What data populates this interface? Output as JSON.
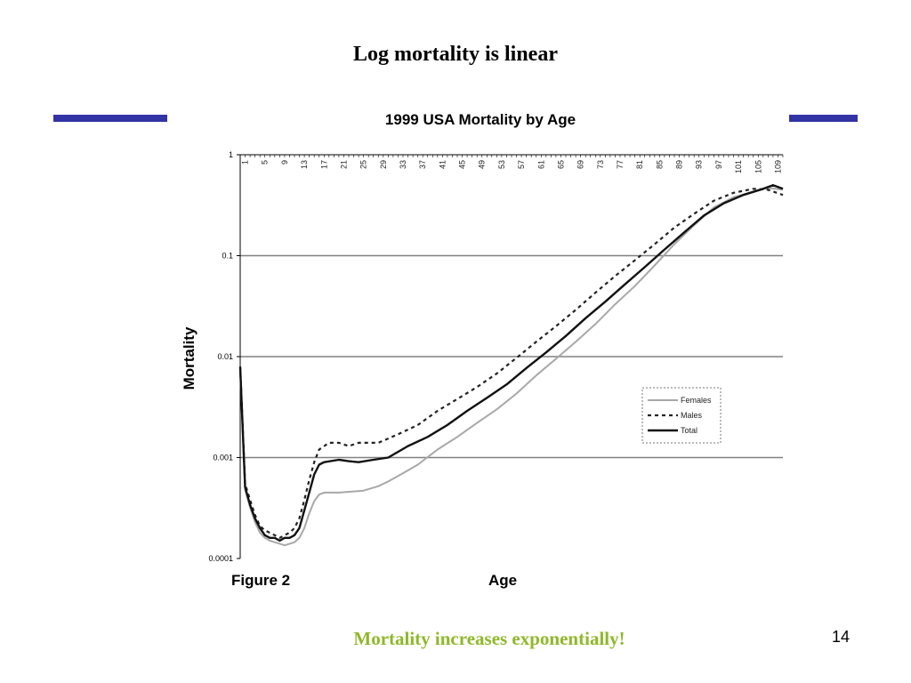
{
  "slide": {
    "title": "Log mortality is linear",
    "caption": "Mortality increases exponentially!",
    "page_number": "14",
    "figure_label": "Figure 2"
  },
  "colors": {
    "accent_bar": "#3333a6",
    "caption": "#8fb82a",
    "females": "#a8a8a8",
    "males": "#222222",
    "total": "#111111",
    "gridline": "#808080"
  },
  "chart_data": {
    "type": "line",
    "title": "1999 USA Mortality by Age",
    "xlabel": "Age",
    "ylabel": "Mortality",
    "y_scale": "log",
    "ylim": [
      0.0001,
      1
    ],
    "xlim": [
      0,
      110
    ],
    "y_ticks": [
      "0.0001",
      "0.001",
      "0.01",
      "0.1",
      "1"
    ],
    "x_ticks": [
      "1",
      "5",
      "9",
      "13",
      "17",
      "21",
      "25",
      "29",
      "33",
      "37",
      "41",
      "45",
      "49",
      "53",
      "57",
      "61",
      "65",
      "69",
      "73",
      "77",
      "81",
      "85",
      "89",
      "93",
      "97",
      "101",
      "105",
      "109"
    ],
    "legend_position": "right",
    "grid": "horizontal",
    "series": [
      {
        "name": "Females",
        "style": "solid-light",
        "points": [
          [
            0,
            0.0075
          ],
          [
            1,
            0.00048
          ],
          [
            2,
            0.00032
          ],
          [
            3,
            0.00023
          ],
          [
            4,
            0.00018
          ],
          [
            5,
            0.00016
          ],
          [
            6,
            0.00015
          ],
          [
            7,
            0.000145
          ],
          [
            8,
            0.00014
          ],
          [
            9,
            0.000135
          ],
          [
            10,
            0.00014
          ],
          [
            11,
            0.000145
          ],
          [
            12,
            0.00016
          ],
          [
            13,
            0.0002
          ],
          [
            14,
            0.00028
          ],
          [
            15,
            0.00037
          ],
          [
            16,
            0.00043
          ],
          [
            17,
            0.00045
          ],
          [
            20,
            0.00045
          ],
          [
            25,
            0.00047
          ],
          [
            28,
            0.00052
          ],
          [
            30,
            0.00058
          ],
          [
            33,
            0.0007
          ],
          [
            36,
            0.00085
          ],
          [
            40,
            0.0012
          ],
          [
            44,
            0.0016
          ],
          [
            48,
            0.0022
          ],
          [
            52,
            0.003
          ],
          [
            56,
            0.0043
          ],
          [
            60,
            0.0065
          ],
          [
            64,
            0.0095
          ],
          [
            68,
            0.014
          ],
          [
            72,
            0.021
          ],
          [
            76,
            0.033
          ],
          [
            80,
            0.05
          ],
          [
            84,
            0.08
          ],
          [
            88,
            0.13
          ],
          [
            92,
            0.2
          ],
          [
            96,
            0.3
          ],
          [
            100,
            0.38
          ],
          [
            104,
            0.43
          ],
          [
            107,
            0.47
          ],
          [
            110,
            0.45
          ]
        ]
      },
      {
        "name": "Males",
        "style": "dashed",
        "points": [
          [
            0,
            0.008
          ],
          [
            1,
            0.00055
          ],
          [
            2,
            0.00038
          ],
          [
            3,
            0.00027
          ],
          [
            4,
            0.00021
          ],
          [
            5,
            0.00019
          ],
          [
            6,
            0.00018
          ],
          [
            7,
            0.00017
          ],
          [
            8,
            0.00016
          ],
          [
            9,
            0.00017
          ],
          [
            10,
            0.00018
          ],
          [
            11,
            0.0002
          ],
          [
            12,
            0.00025
          ],
          [
            13,
            0.00038
          ],
          [
            14,
            0.0006
          ],
          [
            15,
            0.0009
          ],
          [
            16,
            0.0012
          ],
          [
            17,
            0.0013
          ],
          [
            18,
            0.0014
          ],
          [
            20,
            0.0014
          ],
          [
            22,
            0.0013
          ],
          [
            24,
            0.0014
          ],
          [
            28,
            0.0014
          ],
          [
            32,
            0.0017
          ],
          [
            36,
            0.0021
          ],
          [
            40,
            0.0029
          ],
          [
            44,
            0.0038
          ],
          [
            48,
            0.005
          ],
          [
            52,
            0.0068
          ],
          [
            56,
            0.0097
          ],
          [
            60,
            0.014
          ],
          [
            64,
            0.02
          ],
          [
            68,
            0.029
          ],
          [
            72,
            0.043
          ],
          [
            76,
            0.063
          ],
          [
            80,
            0.09
          ],
          [
            84,
            0.13
          ],
          [
            88,
            0.19
          ],
          [
            92,
            0.26
          ],
          [
            96,
            0.35
          ],
          [
            100,
            0.42
          ],
          [
            104,
            0.46
          ],
          [
            107,
            0.45
          ],
          [
            110,
            0.4
          ]
        ]
      },
      {
        "name": "Total",
        "style": "solid-dark",
        "points": [
          [
            0,
            0.0078
          ],
          [
            1,
            0.00051
          ],
          [
            2,
            0.00034
          ],
          [
            3,
            0.00025
          ],
          [
            4,
            0.0002
          ],
          [
            5,
            0.00017
          ],
          [
            6,
            0.00016
          ],
          [
            7,
            0.00016
          ],
          [
            8,
            0.00015
          ],
          [
            9,
            0.00016
          ],
          [
            10,
            0.00016
          ],
          [
            11,
            0.00017
          ],
          [
            12,
            0.0002
          ],
          [
            13,
            0.0003
          ],
          [
            14,
            0.00045
          ],
          [
            15,
            0.00068
          ],
          [
            16,
            0.00085
          ],
          [
            17,
            0.0009
          ],
          [
            20,
            0.00095
          ],
          [
            22,
            0.00092
          ],
          [
            24,
            0.0009
          ],
          [
            27,
            0.00095
          ],
          [
            30,
            0.001
          ],
          [
            34,
            0.0013
          ],
          [
            38,
            0.0016
          ],
          [
            42,
            0.0021
          ],
          [
            46,
            0.0029
          ],
          [
            50,
            0.0039
          ],
          [
            54,
            0.0053
          ],
          [
            58,
            0.0077
          ],
          [
            62,
            0.011
          ],
          [
            66,
            0.016
          ],
          [
            70,
            0.024
          ],
          [
            74,
            0.035
          ],
          [
            78,
            0.052
          ],
          [
            82,
            0.077
          ],
          [
            86,
            0.115
          ],
          [
            90,
            0.17
          ],
          [
            94,
            0.25
          ],
          [
            98,
            0.33
          ],
          [
            102,
            0.4
          ],
          [
            106,
            0.46
          ],
          [
            108,
            0.5
          ],
          [
            110,
            0.46
          ]
        ]
      }
    ]
  }
}
